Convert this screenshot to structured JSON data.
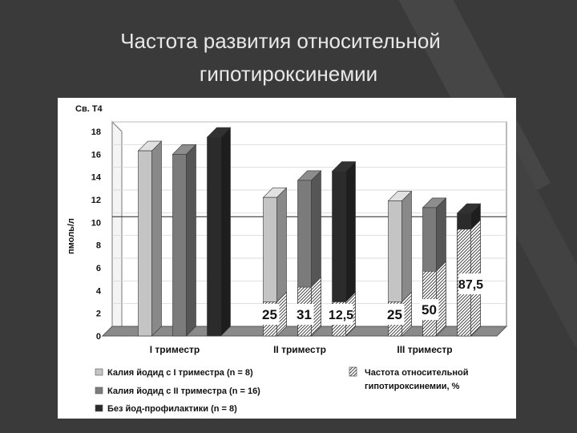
{
  "slide": {
    "title_line1": "Частота развития  относительной",
    "title_line2": "гипотироксинемии"
  },
  "chart_data": {
    "type": "bar",
    "ylabel_top": "Св. Т4",
    "ylabel": "пмоль/л",
    "ylim": [
      0,
      18
    ],
    "yticks": [
      0,
      2,
      4,
      6,
      8,
      10,
      12,
      14,
      16,
      18
    ],
    "reference_line": 10.5,
    "categories": [
      "I триместр",
      "II триместр",
      "III триместр"
    ],
    "series": [
      {
        "name": "Калия йодид с I триместра (n = 8)",
        "color": "#c4c4c4",
        "values": [
          16.3,
          12.2,
          11.9
        ],
        "hatched": [
          0,
          3.0,
          3.0
        ]
      },
      {
        "name": "Калия йодид с II триместра (n = 16)",
        "color": "#7b7b7b",
        "values": [
          16.0,
          13.7,
          11.3
        ],
        "hatched": [
          0,
          4.3,
          5.7
        ]
      },
      {
        "name": "Без йод-профилактики (n = 8)",
        "color": "#2b2b2b",
        "values": [
          17.5,
          14.5,
          10.8
        ],
        "hatched": [
          0,
          3.0,
          9.4
        ]
      }
    ],
    "hatch_legend": "Частота относительной гипотироксинемии, %",
    "percent_labels": [
      [
        null,
        null,
        null
      ],
      [
        "25",
        "31",
        "12,5"
      ],
      [
        "25",
        "50",
        "87,5"
      ]
    ]
  }
}
